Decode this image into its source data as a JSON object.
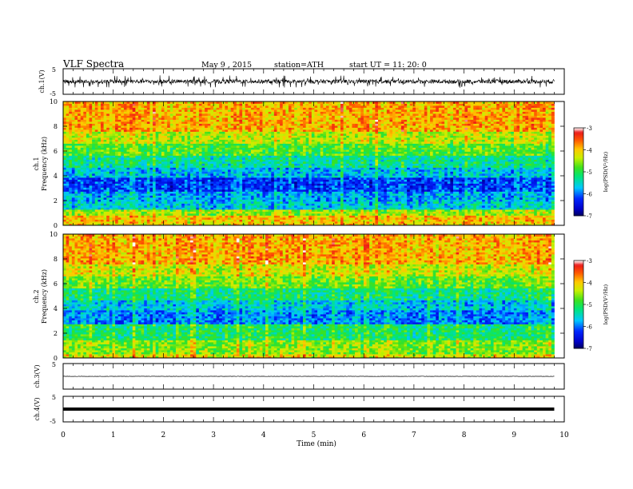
{
  "header": {
    "title": "VLF Spectra",
    "date": "May 9 , 2015",
    "station": "station=ATH",
    "start": "start UT =  11: 20: 0"
  },
  "chart_data": {
    "type": "spectrogram",
    "xlabel": "Time (min)",
    "xlim": [
      0,
      10
    ],
    "xticks": [
      "0",
      "1",
      "2",
      "3",
      "4",
      "5",
      "6",
      "7",
      "8",
      "9",
      "10"
    ],
    "data_end_min": 9.8,
    "panels": [
      {
        "id": "ch1_wave",
        "type": "line",
        "ylabel": "ch.1(V)",
        "ylim": [
          -5,
          5
        ],
        "yticks": [
          "5",
          "-5"
        ],
        "baseline": 0,
        "amplitude": "noisy, roughly ±1 V with spikes to about ±2 V"
      },
      {
        "id": "ch1_spec",
        "type": "heatmap",
        "ylabel": [
          "ch.1",
          "Frequency (kHz)"
        ],
        "ylim": [
          0,
          10
        ],
        "yticks": [
          "0",
          "2",
          "4",
          "6",
          "8",
          "10"
        ],
        "colorbar": {
          "label": "log(PSD(V²/Hz)",
          "range": [
            -7,
            -3
          ],
          "ticks": [
            "-3",
            "-4",
            "-5",
            "-6",
            "-7"
          ]
        },
        "bands": [
          {
            "from_khz": 0.0,
            "to_khz": 0.3,
            "logpsd": -4.1
          },
          {
            "from_khz": 0.3,
            "to_khz": 0.8,
            "logpsd": -4.0
          },
          {
            "from_khz": 0.8,
            "to_khz": 1.3,
            "logpsd": -4.5
          },
          {
            "from_khz": 1.3,
            "to_khz": 2.0,
            "logpsd": -5.6
          },
          {
            "from_khz": 2.0,
            "to_khz": 2.8,
            "logpsd": -5.8
          },
          {
            "from_khz": 2.8,
            "to_khz": 3.8,
            "logpsd": -6.2
          },
          {
            "from_khz": 3.8,
            "to_khz": 4.6,
            "logpsd": -5.7
          },
          {
            "from_khz": 4.6,
            "to_khz": 5.6,
            "logpsd": -5.3
          },
          {
            "from_khz": 5.6,
            "to_khz": 6.6,
            "logpsd": -4.8
          },
          {
            "from_khz": 6.6,
            "to_khz": 7.6,
            "logpsd": -4.4
          },
          {
            "from_khz": 7.6,
            "to_khz": 10.0,
            "logpsd": -3.9
          }
        ]
      },
      {
        "id": "ch2_spec",
        "type": "heatmap",
        "ylabel": [
          "ch.2",
          "Frequency (kHz)"
        ],
        "ylim": [
          0,
          10
        ],
        "yticks": [
          "0",
          "2",
          "4",
          "6",
          "8",
          "10"
        ],
        "colorbar": {
          "label": "log(PSD(V²/Hz)",
          "range": [
            -7,
            -3
          ],
          "ticks": [
            "-3",
            "-4",
            "-5",
            "-6",
            "-7"
          ]
        },
        "bands": [
          {
            "from_khz": 0.0,
            "to_khz": 0.3,
            "logpsd": -4.2
          },
          {
            "from_khz": 0.3,
            "to_khz": 1.5,
            "logpsd": -4.6
          },
          {
            "from_khz": 1.5,
            "to_khz": 2.8,
            "logpsd": -5.1
          },
          {
            "from_khz": 2.8,
            "to_khz": 3.8,
            "logpsd": -5.9
          },
          {
            "from_khz": 3.8,
            "to_khz": 4.6,
            "logpsd": -5.6
          },
          {
            "from_khz": 4.6,
            "to_khz": 5.6,
            "logpsd": -5.2
          },
          {
            "from_khz": 5.6,
            "to_khz": 6.6,
            "logpsd": -4.7
          },
          {
            "from_khz": 6.6,
            "to_khz": 7.6,
            "logpsd": -4.3
          },
          {
            "from_khz": 7.6,
            "to_khz": 10.0,
            "logpsd": -3.9
          }
        ]
      },
      {
        "id": "ch3_wave",
        "type": "line",
        "ylabel": "ch.3(V)",
        "ylim": [
          -5,
          5
        ],
        "yticks": [
          "5",
          "-5"
        ],
        "baseline": 0,
        "amplitude": "nearly flat line at 0 V"
      },
      {
        "id": "ch4_wave",
        "type": "line",
        "ylabel": "ch.4(V)",
        "ylim": [
          -5,
          5
        ],
        "yticks": [
          "5",
          "-5"
        ],
        "baseline": 0,
        "amplitude": "thick flat line at 0 V"
      }
    ]
  }
}
